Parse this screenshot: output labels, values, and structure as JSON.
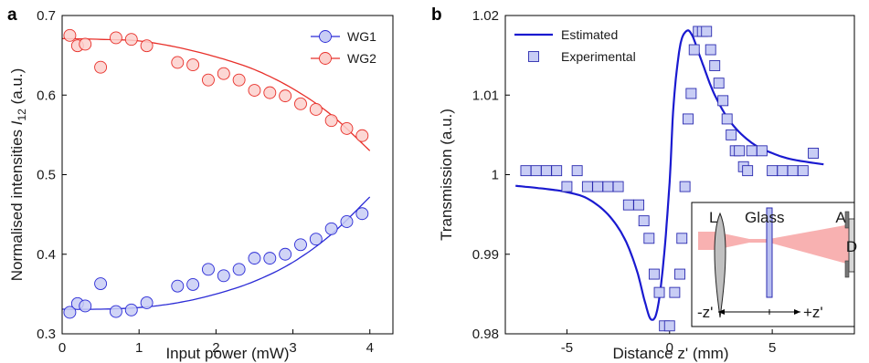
{
  "chart_data": [
    {
      "panel": "a",
      "type": "scatter",
      "xlabel": "Input power (mW)",
      "ylabel_main": "Normalised intensities ",
      "ylabel_var": "I",
      "ylabel_sub": "12",
      "ylabel_unit": " (a.u.)",
      "xlim": [
        0,
        4.3
      ],
      "ylim": [
        0.3,
        0.7
      ],
      "xticks": [
        0,
        1,
        2,
        3,
        4
      ],
      "xtick_labels": [
        "0",
        "1",
        "2",
        "3",
        "4"
      ],
      "yticks": [
        0.3,
        0.4,
        0.5,
        0.6,
        0.7
      ],
      "ytick_labels": [
        "0.3",
        "0.4",
        "0.5",
        "0.6",
        "0.7"
      ],
      "legend_position": "top-right",
      "series": [
        {
          "name": "WG1",
          "color": "#2b2bd6",
          "fill": "#c8cdf5",
          "points": [
            [
              0.1,
              0.327
            ],
            [
              0.2,
              0.338
            ],
            [
              0.3,
              0.335
            ],
            [
              0.5,
              0.363
            ],
            [
              0.7,
              0.328
            ],
            [
              0.9,
              0.33
            ],
            [
              1.1,
              0.339
            ],
            [
              1.5,
              0.36
            ],
            [
              1.7,
              0.362
            ],
            [
              1.9,
              0.381
            ],
            [
              2.1,
              0.373
            ],
            [
              2.3,
              0.381
            ],
            [
              2.5,
              0.395
            ],
            [
              2.7,
              0.395
            ],
            [
              2.9,
              0.4
            ],
            [
              3.1,
              0.412
            ],
            [
              3.3,
              0.419
            ],
            [
              3.5,
              0.432
            ],
            [
              3.7,
              0.441
            ],
            [
              3.9,
              0.451
            ]
          ],
          "fit": [
            [
              0,
              0.331
            ],
            [
              0.5,
              0.331
            ],
            [
              1.0,
              0.333
            ],
            [
              1.5,
              0.339
            ],
            [
              2.0,
              0.35
            ],
            [
              2.5,
              0.366
            ],
            [
              3.0,
              0.39
            ],
            [
              3.5,
              0.425
            ],
            [
              4.0,
              0.472
            ]
          ]
        },
        {
          "name": "WG2",
          "color": "#e8302a",
          "fill": "#fbd0cc",
          "points": [
            [
              0.1,
              0.675
            ],
            [
              0.2,
              0.662
            ],
            [
              0.3,
              0.664
            ],
            [
              0.5,
              0.635
            ],
            [
              0.7,
              0.672
            ],
            [
              0.9,
              0.67
            ],
            [
              1.1,
              0.662
            ],
            [
              1.5,
              0.641
            ],
            [
              1.7,
              0.638
            ],
            [
              1.9,
              0.619
            ],
            [
              2.1,
              0.627
            ],
            [
              2.3,
              0.619
            ],
            [
              2.5,
              0.606
            ],
            [
              2.7,
              0.603
            ],
            [
              2.9,
              0.599
            ],
            [
              3.1,
              0.589
            ],
            [
              3.3,
              0.582
            ],
            [
              3.5,
              0.568
            ],
            [
              3.7,
              0.558
            ],
            [
              3.9,
              0.549
            ]
          ],
          "fit": [
            [
              0,
              0.671
            ],
            [
              0.5,
              0.67
            ],
            [
              1.0,
              0.668
            ],
            [
              1.5,
              0.66
            ],
            [
              2.0,
              0.648
            ],
            [
              2.5,
              0.632
            ],
            [
              3.0,
              0.608
            ],
            [
              3.5,
              0.575
            ],
            [
              4.0,
              0.53
            ]
          ]
        }
      ]
    },
    {
      "panel": "b",
      "type": "scatter",
      "xlabel": "Distance z' (mm)",
      "ylabel": "Transmission (a.u.)",
      "xlim": [
        -8,
        9
      ],
      "ylim": [
        0.98,
        1.02
      ],
      "xticks": [
        -5,
        0,
        5
      ],
      "xtick_labels": [
        "-5",
        "0",
        "5"
      ],
      "yticks": [
        0.98,
        0.99,
        1.0,
        1.01,
        1.02
      ],
      "ytick_labels": [
        "0.98",
        "0.99",
        "1",
        "1.01",
        "1.02"
      ],
      "legend_position": "top-left",
      "series": [
        {
          "name": "Estimated",
          "kind": "line",
          "color": "#1a1ad0",
          "points": [
            [
              -7.5,
              0.9986
            ],
            [
              -6,
              0.9982
            ],
            [
              -5,
              0.9978
            ],
            [
              -4,
              0.997
            ],
            [
              -3,
              0.995
            ],
            [
              -2.2,
              0.992
            ],
            [
              -1.6,
              0.988
            ],
            [
              -1.2,
              0.984
            ],
            [
              -0.9,
              0.9818
            ],
            [
              -0.6,
              0.983
            ],
            [
              -0.3,
              0.989
            ],
            [
              0,
              0.999
            ],
            [
              0.2,
              1.009
            ],
            [
              0.5,
              1.016
            ],
            [
              0.8,
              1.018
            ],
            [
              1.1,
              1.0175
            ],
            [
              1.6,
              1.014
            ],
            [
              2.2,
              1.01
            ],
            [
              3,
              1.0065
            ],
            [
              4,
              1.004
            ],
            [
              5,
              1.0027
            ],
            [
              6,
              1.0019
            ],
            [
              7.5,
              1.0013
            ]
          ]
        },
        {
          "name": "Experimental",
          "kind": "markers",
          "color": "#2b2bb0",
          "fill": "#c8cdf5",
          "points": [
            [
              -7,
              1.0005
            ],
            [
              -6.5,
              1.0005
            ],
            [
              -6,
              1.0005
            ],
            [
              -5.5,
              1.0005
            ],
            [
              -5,
              0.9985
            ],
            [
              -4.5,
              1.0005
            ],
            [
              -4,
              0.9985
            ],
            [
              -3.5,
              0.9985
            ],
            [
              -3,
              0.9985
            ],
            [
              -2.5,
              0.9985
            ],
            [
              -2,
              0.9962
            ],
            [
              -1.5,
              0.9962
            ],
            [
              -1.25,
              0.9942
            ],
            [
              -1.0,
              0.992
            ],
            [
              -0.75,
              0.9875
            ],
            [
              -0.5,
              0.9852
            ],
            [
              -0.25,
              0.981
            ],
            [
              0,
              0.981
            ],
            [
              0.25,
              0.9852
            ],
            [
              0.5,
              0.9875
            ],
            [
              0.6,
              0.992
            ],
            [
              0.75,
              0.9985
            ],
            [
              0.9,
              1.007
            ],
            [
              1.05,
              1.0102
            ],
            [
              1.2,
              1.0157
            ],
            [
              1.4,
              1.018
            ],
            [
              1.6,
              1.018
            ],
            [
              1.8,
              1.018
            ],
            [
              2.0,
              1.0157
            ],
            [
              2.2,
              1.0137
            ],
            [
              2.4,
              1.0115
            ],
            [
              2.6,
              1.0093
            ],
            [
              2.8,
              1.007
            ],
            [
              3.0,
              1.005
            ],
            [
              3.2,
              1.003
            ],
            [
              3.4,
              1.003
            ],
            [
              3.6,
              1.001
            ],
            [
              3.8,
              1.0005
            ],
            [
              4.0,
              1.003
            ],
            [
              4.5,
              1.003
            ],
            [
              5,
              1.0005
            ],
            [
              5.5,
              1.0005
            ],
            [
              6,
              1.0005
            ],
            [
              6.5,
              1.0005
            ],
            [
              7,
              1.0027
            ]
          ]
        }
      ],
      "inset": {
        "labels": {
          "lens": "L",
          "glass": "Glass",
          "aperture": "A",
          "detector": "D",
          "minus_z": "-z'",
          "plus_z": "+z'"
        },
        "beam_color": "#f7a8a8"
      }
    }
  ],
  "panel_letters": {
    "a": "a",
    "b": "b"
  }
}
